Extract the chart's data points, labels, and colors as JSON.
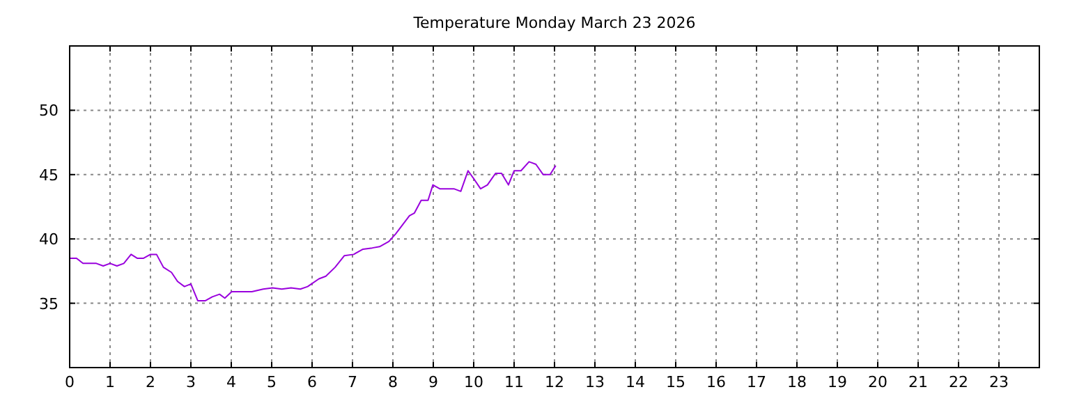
{
  "chart_data": {
    "type": "line",
    "title": "Temperature Monday March 23 2026",
    "xlim": [
      0,
      24
    ],
    "xticks": [
      0,
      1,
      2,
      3,
      4,
      5,
      6,
      7,
      8,
      9,
      10,
      11,
      12,
      13,
      14,
      15,
      16,
      17,
      18,
      19,
      20,
      21,
      22,
      23
    ],
    "ylim": [
      30,
      55
    ],
    "yticks": [
      35,
      40,
      45,
      50
    ],
    "grid": true,
    "series": [
      {
        "color": "#9900dd",
        "x": [
          0,
          0.17,
          0.33,
          0.66,
          0.83,
          1.0,
          1.17,
          1.34,
          1.52,
          1.67,
          1.83,
          2.0,
          2.15,
          2.32,
          2.52,
          2.67,
          2.84,
          3.0,
          3.17,
          3.36,
          3.53,
          3.71,
          3.84,
          4.01,
          4.51,
          4.79,
          5.02,
          5.25,
          5.48,
          5.71,
          5.89,
          6.17,
          6.34,
          6.57,
          6.8,
          7.03,
          7.26,
          7.49,
          7.67,
          7.9,
          8.07,
          8.24,
          8.41,
          8.53,
          8.7,
          8.87,
          8.99,
          9.16,
          9.51,
          9.68,
          9.86,
          10.02,
          10.17,
          10.34,
          10.54,
          10.69,
          10.86,
          11.0,
          11.17,
          11.37,
          11.54,
          11.72,
          11.89,
          12.03
        ],
        "values": [
          38.5,
          38.5,
          38.1,
          38.1,
          37.9,
          38.1,
          37.9,
          38.1,
          38.8,
          38.5,
          38.5,
          38.8,
          38.8,
          37.8,
          37.4,
          36.7,
          36.3,
          36.5,
          35.2,
          35.2,
          35.5,
          35.7,
          35.4,
          35.9,
          35.9,
          36.1,
          36.2,
          36.1,
          36.2,
          36.1,
          36.3,
          36.9,
          37.1,
          37.8,
          38.7,
          38.8,
          39.2,
          39.3,
          39.4,
          39.8,
          40.4,
          41.1,
          41.8,
          42.0,
          43.0,
          43.0,
          44.2,
          43.9,
          43.9,
          43.7,
          45.3,
          44.6,
          43.9,
          44.2,
          45.1,
          45.1,
          44.2,
          45.3,
          45.3,
          46.0,
          45.8,
          45.0,
          45.0,
          45.7
        ]
      }
    ]
  }
}
